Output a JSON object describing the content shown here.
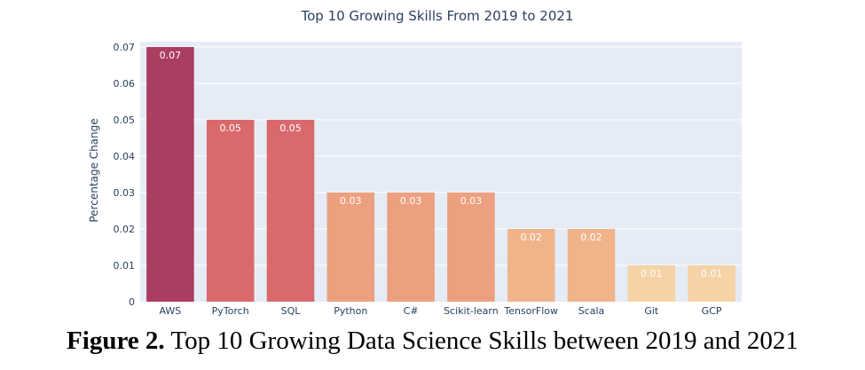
{
  "chart_data": {
    "type": "bar",
    "title": "Top 10 Growing Skills From 2019 to 2021",
    "xlabel": "",
    "ylabel": "Percentage Change",
    "categories": [
      "AWS",
      "PyTorch",
      "SQL",
      "Python",
      "C#",
      "Scikit-learn",
      "TensorFlow",
      "Scala",
      "Git",
      "GCP"
    ],
    "values": [
      0.07,
      0.05,
      0.05,
      0.03,
      0.03,
      0.03,
      0.02,
      0.02,
      0.01,
      0.01
    ],
    "data_labels": [
      "0.07",
      "0.05",
      "0.05",
      "0.03",
      "0.03",
      "0.03",
      "0.02",
      "0.02",
      "0.01",
      "0.01"
    ],
    "ylim": [
      0,
      0.07
    ],
    "yticks": [
      0,
      0.01,
      0.02,
      0.03,
      0.04,
      0.05,
      0.06,
      0.07
    ],
    "ytick_labels": [
      "0",
      "0.01",
      "0.02",
      "0.03",
      "0.04",
      "0.05",
      "0.06",
      "0.07"
    ],
    "grid": true,
    "colors": {
      "plot_background": "#e5ecf6",
      "gridline": "#ffffff",
      "bar_scale": [
        "#ab3e60",
        "#d9696b",
        "#eca07f",
        "#f0b48a",
        "#f5d3a6"
      ]
    }
  },
  "caption": {
    "label": "Figure 2.",
    "text": "Top 10 Growing Data Science Skills between 2019 and 2021"
  }
}
